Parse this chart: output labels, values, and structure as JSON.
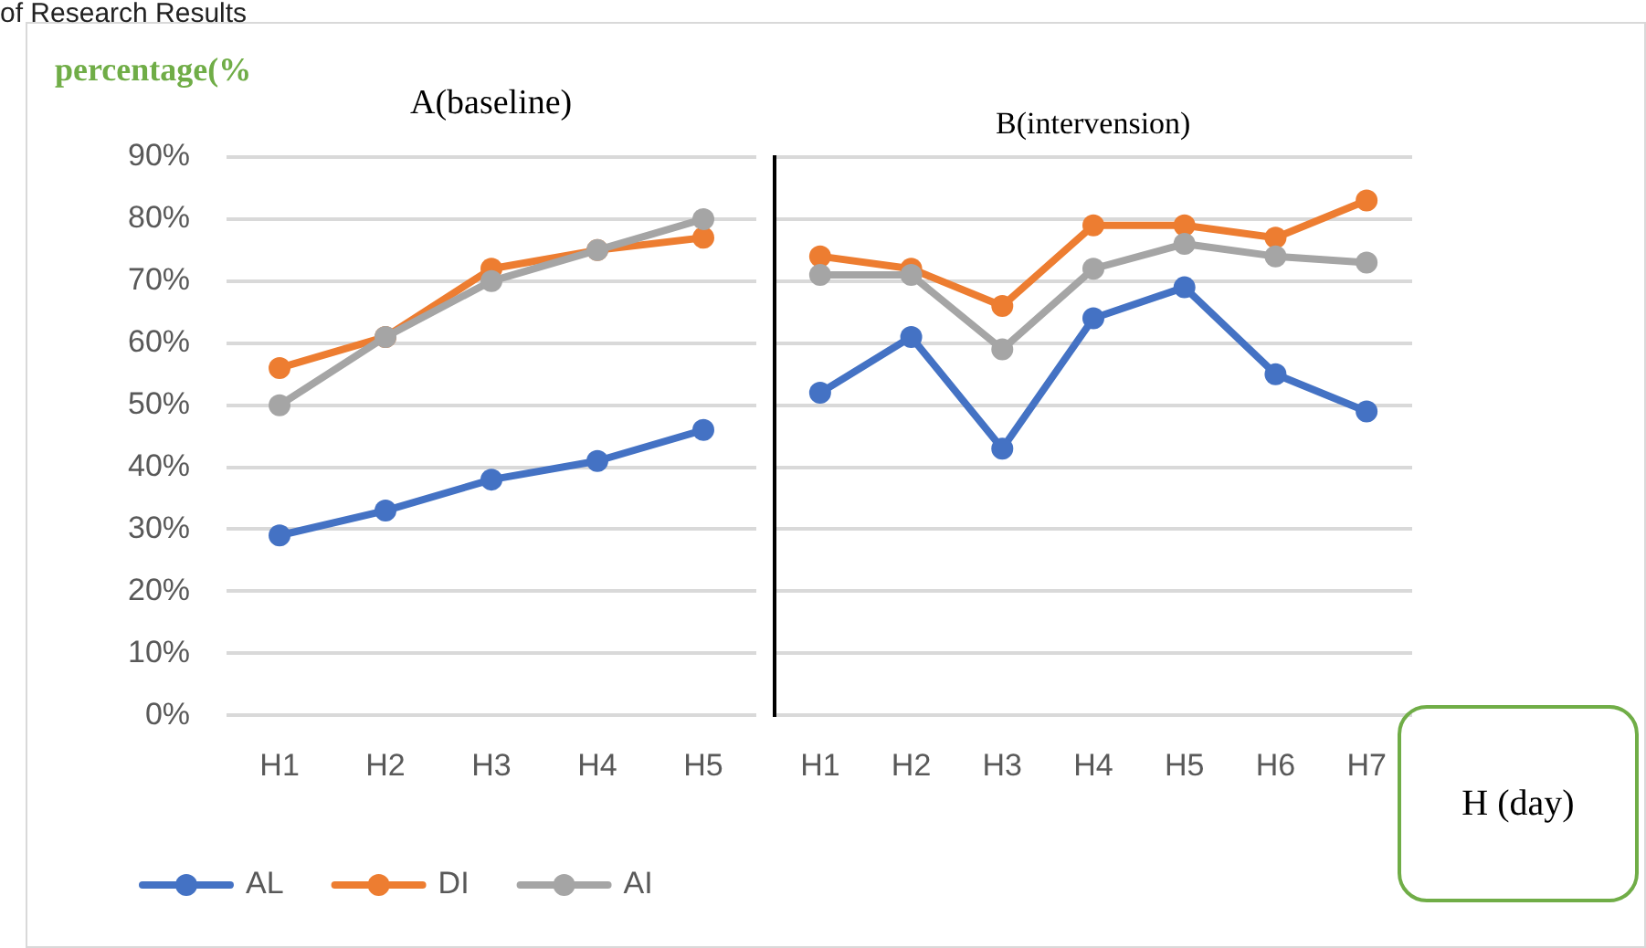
{
  "chart_data": [
    {
      "type": "line",
      "title": "A(baseline)",
      "ylabel": "percentage(%",
      "annotations": [
        "of Research Results"
      ],
      "categories": [
        "H1",
        "H2",
        "H3",
        "H4",
        "H5"
      ],
      "series": [
        {
          "name": "AL",
          "color": "#4472c4",
          "values": [
            29,
            33,
            38,
            41,
            46
          ]
        },
        {
          "name": "DI",
          "color": "#ed7d31",
          "values": [
            56,
            61,
            72,
            75,
            77
          ]
        },
        {
          "name": "AI",
          "color": "#a5a5a5",
          "values": [
            50,
            61,
            70,
            75,
            80
          ]
        }
      ],
      "ylim": [
        0,
        90
      ],
      "yticks": [
        {
          "value": 0,
          "label": "0%"
        },
        {
          "value": 10,
          "label": "10%"
        },
        {
          "value": 20,
          "label": "20%"
        },
        {
          "value": 30,
          "label": "30%"
        },
        {
          "value": 40,
          "label": "40%"
        },
        {
          "value": 50,
          "label": "50%"
        },
        {
          "value": 60,
          "label": "60%"
        },
        {
          "value": 70,
          "label": "70%"
        },
        {
          "value": 80,
          "label": "80%"
        },
        {
          "value": 90,
          "label": "90%"
        }
      ],
      "grid": "y",
      "legend": "bottom",
      "marker": "circle",
      "line_style": "solid"
    },
    {
      "type": "line",
      "title": "B(intervension)",
      "xlabel": "H (day)",
      "categories": [
        "H1",
        "H2",
        "H3",
        "H4",
        "H5",
        "H6",
        "H7"
      ],
      "series": [
        {
          "color": "#4472c4",
          "values": [
            52,
            61,
            43,
            64,
            69,
            55,
            49
          ]
        },
        {
          "color": "#ed7d31",
          "values": [
            74,
            72,
            66,
            79,
            79,
            77,
            83
          ]
        },
        {
          "color": "#a5a5a5",
          "values": [
            71,
            71,
            59,
            72,
            76,
            74,
            73
          ]
        }
      ],
      "ylim": [
        0,
        90
      ],
      "yticks": [
        0,
        10,
        20,
        30,
        40,
        50,
        60,
        70,
        80,
        90
      ],
      "tick_labels": "x",
      "grid": "y",
      "marker": "circle",
      "line_style": "solid"
    }
  ]
}
